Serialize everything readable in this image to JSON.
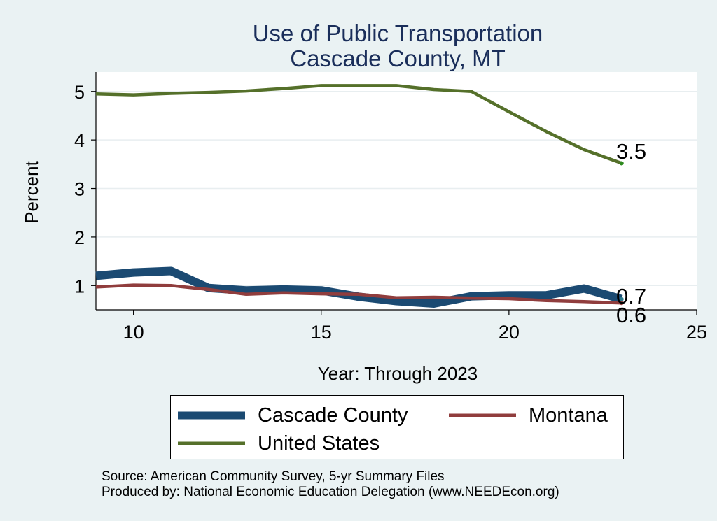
{
  "chart_data": {
    "type": "line",
    "title": "Use of Public Transportation",
    "subtitle": "Cascade County, MT",
    "xlabel": "Year: Through 2023",
    "ylabel": "Percent",
    "xlim": [
      9,
      25
    ],
    "ylim": [
      0.5,
      5.4
    ],
    "xticks": [
      10,
      15,
      20,
      25
    ],
    "yticks": [
      1,
      2,
      3,
      4,
      5
    ],
    "grid": true,
    "legend_position": "bottom",
    "x": [
      9,
      10,
      11,
      12,
      13,
      14,
      15,
      16,
      17,
      18,
      19,
      20,
      21,
      22,
      23
    ],
    "series": [
      {
        "name": "Cascade County",
        "color": "#1b4a72",
        "values": [
          1.2,
          1.27,
          1.3,
          0.95,
          0.9,
          0.92,
          0.9,
          0.77,
          0.68,
          0.63,
          0.78,
          0.8,
          0.8,
          0.94,
          0.72
        ],
        "end_label": "0.7"
      },
      {
        "name": "Montana",
        "color": "#903d3d",
        "values": [
          0.97,
          1.01,
          1.0,
          0.92,
          0.82,
          0.85,
          0.83,
          0.82,
          0.75,
          0.76,
          0.74,
          0.73,
          0.69,
          0.67,
          0.64
        ],
        "end_label": "0.6"
      },
      {
        "name": "United States",
        "color": "#55702a",
        "values": [
          4.95,
          4.93,
          4.96,
          4.98,
          5.01,
          5.06,
          5.12,
          5.12,
          5.12,
          5.04,
          5.0,
          4.58,
          4.17,
          3.8,
          3.52
        ],
        "end_label": "3.5"
      }
    ]
  },
  "source_line": "Source: American Community Survey, 5-yr Summary Files",
  "producer_line": "Produced by: National Economic Education Delegation (www.NEEDEcon.org)"
}
